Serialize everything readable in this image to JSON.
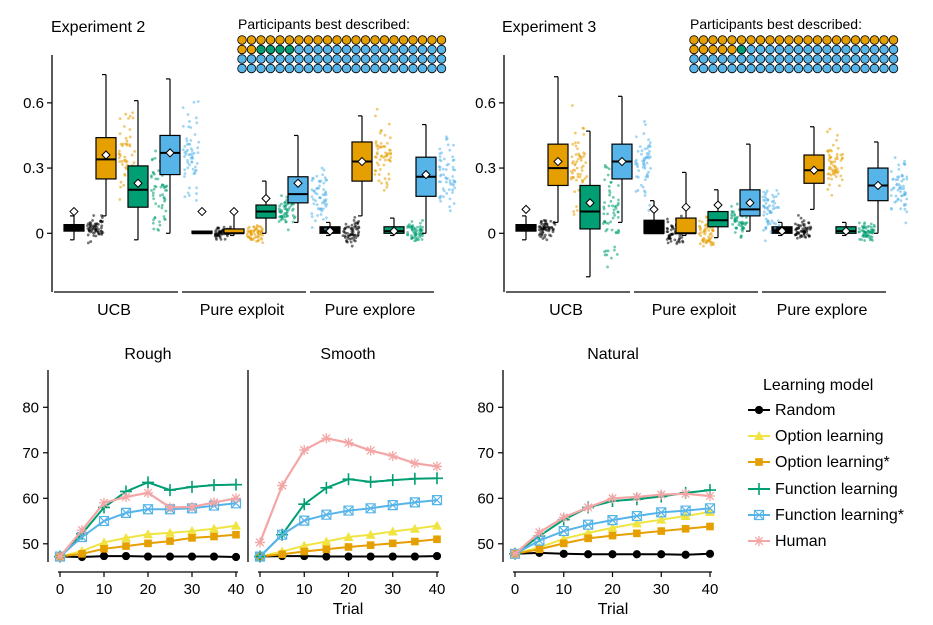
{
  "colors": {
    "random": "#000000",
    "option": "#f0e442",
    "option_star": "#e69f00",
    "function": "#009e73",
    "function_star": "#56b4e9",
    "human": "#f4a6a6"
  },
  "panels_top": [
    {
      "title": "Experiment 2",
      "participants_label": "Participants best described:",
      "dot_grid_counts": {
        "option_star": 24,
        "function": 4,
        "function_star": 60
      }
    },
    {
      "title": "Experiment 3",
      "participants_label": "Participants best described:",
      "dot_grid_counts": {
        "option_star": 27,
        "function": 1,
        "function_star": 60
      }
    }
  ],
  "top_axis": {
    "yticks": [
      "0",
      "0.3",
      "0.6"
    ],
    "yvalues": [
      0,
      0.3,
      0.6
    ],
    "ylim": [
      -0.27,
      0.82
    ],
    "groups": [
      "UCB",
      "Pure exploit",
      "Pure explore"
    ]
  },
  "chart_data": [
    {
      "type": "box",
      "title": "Experiment 2",
      "groups": [
        "UCB",
        "Pure exploit",
        "Pure explore"
      ],
      "series": [
        {
          "key": "random",
          "boxes": [
            {
              "group": "UCB",
              "q1": 0.01,
              "median": 0.02,
              "q3": 0.04,
              "low": -0.03,
              "high": 0.08,
              "mean": 0.1
            },
            {
              "group": "Pure exploit",
              "q1": 0,
              "median": 0,
              "q3": 0.01,
              "low": 0,
              "high": 0.01,
              "mean": 0.1
            },
            {
              "group": "Pure explore",
              "q1": 0.0,
              "median": 0.01,
              "q3": 0.03,
              "low": -0.01,
              "high": 0.05,
              "mean": 0.01
            }
          ]
        },
        {
          "key": "option_star",
          "boxes": [
            {
              "group": "UCB",
              "q1": 0.25,
              "median": 0.34,
              "q3": 0.44,
              "low": 0.08,
              "high": 0.73,
              "mean": 0.36
            },
            {
              "group": "Pure exploit",
              "q1": 0,
              "median": 0,
              "q3": 0.02,
              "low": -0.01,
              "high": 0.1,
              "mean": 0.1
            },
            {
              "group": "Pure explore",
              "q1": 0.24,
              "median": 0.33,
              "q3": 0.42,
              "low": 0.08,
              "high": 0.54,
              "mean": 0.33
            }
          ]
        },
        {
          "key": "function",
          "boxes": [
            {
              "group": "UCB",
              "q1": 0.12,
              "median": 0.2,
              "q3": 0.31,
              "low": -0.03,
              "high": 0.61,
              "mean": 0.23
            },
            {
              "group": "Pure exploit",
              "q1": 0.07,
              "median": 0.1,
              "q3": 0.13,
              "low": 0.0,
              "high": 0.24,
              "mean": 0.16
            },
            {
              "group": "Pure explore",
              "q1": 0.0,
              "median": 0.01,
              "q3": 0.03,
              "low": -0.01,
              "high": 0.07,
              "mean": 0.01
            }
          ]
        },
        {
          "key": "function_star",
          "boxes": [
            {
              "group": "UCB",
              "q1": 0.27,
              "median": 0.37,
              "q3": 0.45,
              "low": 0.0,
              "high": 0.71,
              "mean": 0.37
            },
            {
              "group": "Pure exploit",
              "q1": 0.14,
              "median": 0.18,
              "q3": 0.26,
              "low": 0.05,
              "high": 0.45,
              "mean": 0.23
            },
            {
              "group": "Pure explore",
              "q1": 0.17,
              "median": 0.26,
              "q3": 0.35,
              "low": 0.0,
              "high": 0.5,
              "mean": 0.27
            }
          ]
        }
      ]
    },
    {
      "type": "box",
      "title": "Experiment 3",
      "groups": [
        "UCB",
        "Pure exploit",
        "Pure explore"
      ],
      "series": [
        {
          "key": "random",
          "boxes": [
            {
              "group": "UCB",
              "q1": 0.01,
              "median": 0.02,
              "q3": 0.04,
              "low": -0.03,
              "high": 0.08,
              "mean": 0.11
            },
            {
              "group": "Pure exploit",
              "q1": 0,
              "median": 0,
              "q3": 0.06,
              "low": 0,
              "high": 0.15,
              "mean": 0.11
            },
            {
              "group": "Pure explore",
              "q1": 0.0,
              "median": 0.01,
              "q3": 0.03,
              "low": -0.01,
              "high": 0.05,
              "mean": 0.01
            }
          ]
        },
        {
          "key": "option_star",
          "boxes": [
            {
              "group": "UCB",
              "q1": 0.22,
              "median": 0.3,
              "q3": 0.41,
              "low": 0.05,
              "high": 0.72,
              "mean": 0.33
            },
            {
              "group": "Pure exploit",
              "q1": 0,
              "median": 0,
              "q3": 0.07,
              "low": -0.01,
              "high": 0.28,
              "mean": 0.12
            },
            {
              "group": "Pure explore",
              "q1": 0.23,
              "median": 0.29,
              "q3": 0.36,
              "low": 0.11,
              "high": 0.49,
              "mean": 0.29
            }
          ]
        },
        {
          "key": "function",
          "boxes": [
            {
              "group": "UCB",
              "q1": 0.02,
              "median": 0.1,
              "q3": 0.22,
              "low": -0.2,
              "high": 0.47,
              "mean": 0.14
            },
            {
              "group": "Pure exploit",
              "q1": 0.03,
              "median": 0.06,
              "q3": 0.1,
              "low": -0.02,
              "high": 0.2,
              "mean": 0.13
            },
            {
              "group": "Pure explore",
              "q1": 0.0,
              "median": 0.01,
              "q3": 0.03,
              "low": -0.01,
              "high": 0.05,
              "mean": 0.01
            }
          ]
        },
        {
          "key": "function_star",
          "boxes": [
            {
              "group": "UCB",
              "q1": 0.25,
              "median": 0.33,
              "q3": 0.41,
              "low": 0.05,
              "high": 0.63,
              "mean": 0.33
            },
            {
              "group": "Pure exploit",
              "q1": 0.08,
              "median": 0.11,
              "q3": 0.2,
              "low": 0.01,
              "high": 0.41,
              "mean": 0.14
            },
            {
              "group": "Pure explore",
              "q1": 0.15,
              "median": 0.22,
              "q3": 0.3,
              "low": 0.0,
              "high": 0.42,
              "mean": 0.22
            }
          ]
        }
      ]
    },
    {
      "type": "line",
      "title": "Rough",
      "xlabel": "",
      "x": [
        0,
        5,
        10,
        15,
        20,
        25,
        30,
        35,
        40
      ],
      "xlim": [
        0,
        40
      ],
      "ylim": [
        46,
        86
      ],
      "series": [
        {
          "key": "random",
          "values": [
            47.2,
            47.1,
            47.3,
            47.3,
            47.2,
            47.2,
            47.2,
            47.2,
            47.1
          ]
        },
        {
          "key": "option",
          "values": [
            47.2,
            48.4,
            50.3,
            51.3,
            52.1,
            52.4,
            52.8,
            53.3,
            54.0
          ]
        },
        {
          "key": "option_star",
          "values": [
            47.2,
            47.8,
            48.9,
            49.5,
            50.1,
            50.6,
            51.3,
            51.6,
            52.0
          ]
        },
        {
          "key": "function",
          "values": [
            47.2,
            52.2,
            58.0,
            61.5,
            63.5,
            61.8,
            62.5,
            62.9,
            63.0
          ]
        },
        {
          "key": "function_star",
          "values": [
            47.2,
            51.5,
            55.0,
            56.8,
            57.6,
            57.6,
            57.8,
            58.4,
            58.9
          ]
        },
        {
          "key": "human",
          "values": [
            47.2,
            53.0,
            59.0,
            60.3,
            61.2,
            58.0,
            58.1,
            59.1,
            60.0
          ]
        }
      ]
    },
    {
      "type": "line",
      "title": "Smooth",
      "xlabel": "Trial",
      "x": [
        0,
        5,
        10,
        15,
        20,
        25,
        30,
        35,
        40
      ],
      "xlim": [
        0,
        40
      ],
      "ylim": [
        46,
        86
      ],
      "series": [
        {
          "key": "random",
          "values": [
            47.2,
            47.3,
            47.3,
            47.2,
            47.2,
            47.2,
            47.2,
            47.2,
            47.3
          ]
        },
        {
          "key": "option",
          "values": [
            47.2,
            48.3,
            49.6,
            50.5,
            51.5,
            52.0,
            52.7,
            53.3,
            54.0
          ]
        },
        {
          "key": "option_star",
          "values": [
            47.2,
            47.7,
            48.3,
            48.8,
            49.3,
            49.7,
            50.1,
            50.5,
            51.0
          ]
        },
        {
          "key": "function",
          "values": [
            47.2,
            52.0,
            58.7,
            62.3,
            64.2,
            63.6,
            64.0,
            64.3,
            64.4
          ]
        },
        {
          "key": "function_star",
          "values": [
            47.2,
            52.0,
            55.1,
            56.4,
            57.3,
            57.8,
            58.5,
            59.1,
            59.6
          ]
        },
        {
          "key": "human",
          "values": [
            50.3,
            62.8,
            70.6,
            73.2,
            72.2,
            70.5,
            69.3,
            67.7,
            67.0
          ]
        }
      ]
    },
    {
      "type": "line",
      "title": "Natural",
      "xlabel": "Trial",
      "x": [
        0,
        5,
        10,
        15,
        20,
        25,
        30,
        35,
        40
      ],
      "xlim": [
        0,
        40
      ],
      "ylim": [
        46,
        86
      ],
      "series": [
        {
          "key": "random",
          "values": [
            47.8,
            48.0,
            47.8,
            47.7,
            47.7,
            47.7,
            47.7,
            47.6,
            47.8
          ]
        },
        {
          "key": "option",
          "values": [
            47.8,
            49.2,
            51.1,
            52.4,
            53.5,
            54.5,
            55.3,
            56.1,
            57.0
          ]
        },
        {
          "key": "option_star",
          "values": [
            47.8,
            48.8,
            50.1,
            51.2,
            51.8,
            52.3,
            52.8,
            53.3,
            53.8
          ]
        },
        {
          "key": "function",
          "values": [
            47.8,
            51.7,
            55.3,
            58.0,
            59.4,
            59.8,
            60.4,
            61.2,
            61.8
          ]
        },
        {
          "key": "function_star",
          "values": [
            47.8,
            50.7,
            52.8,
            54.2,
            55.2,
            56.1,
            56.9,
            57.3,
            57.8
          ]
        },
        {
          "key": "human",
          "values": [
            47.8,
            52.5,
            55.8,
            58.0,
            60.0,
            60.3,
            60.8,
            61.0,
            60.5
          ]
        }
      ]
    }
  ],
  "bottom_axis": {
    "yticks": [
      "50",
      "60",
      "70",
      "80"
    ],
    "yvalues": [
      50,
      60,
      70,
      80
    ],
    "xticks": [
      "0",
      "10",
      "20",
      "30",
      "40"
    ],
    "xvalues": [
      0,
      10,
      20,
      30,
      40
    ]
  },
  "legend": {
    "title": "Learning model",
    "items": [
      {
        "key": "random",
        "label": "Random",
        "marker": "circle"
      },
      {
        "key": "option",
        "label": "Option learning",
        "marker": "triangle"
      },
      {
        "key": "option_star",
        "label": "Option learning*",
        "marker": "square"
      },
      {
        "key": "function",
        "label": "Function learning",
        "marker": "plus"
      },
      {
        "key": "function_star",
        "label": "Function learning*",
        "marker": "xsquare"
      },
      {
        "key": "human",
        "label": "Human",
        "marker": "star"
      }
    ]
  }
}
